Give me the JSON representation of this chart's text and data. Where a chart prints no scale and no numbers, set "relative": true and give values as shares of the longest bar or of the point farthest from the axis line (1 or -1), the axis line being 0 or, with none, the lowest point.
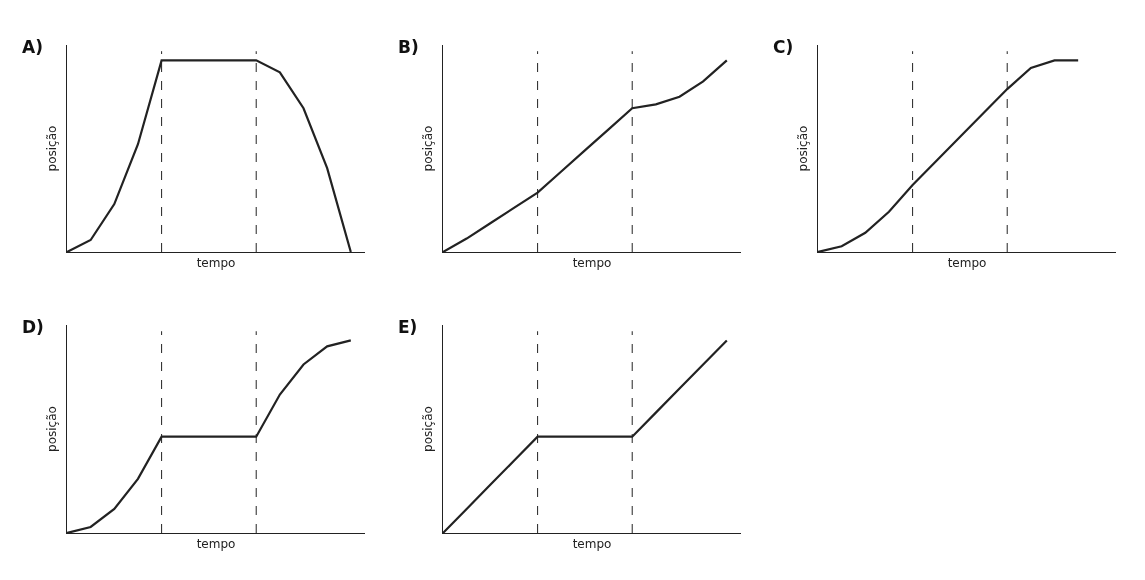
{
  "chart_data": [
    {
      "type": "line",
      "title": "A)",
      "xlabel": "tempo",
      "ylabel": "posição",
      "relative": true,
      "categories": [
        null,
        null,
        null,
        null,
        null,
        null,
        null,
        null,
        null,
        null,
        null,
        null,
        null
      ],
      "series": [
        {
          "color": "#222222",
          "values": [
            0,
            0.0625,
            0.25,
            0.5625,
            1,
            1,
            1,
            1,
            1,
            0.9375,
            0.75,
            0.4375,
            0
          ]
        }
      ]
    },
    {
      "type": "line",
      "title": "B)",
      "xlabel": "tempo",
      "ylabel": "posição",
      "relative": true,
      "categories": [
        null,
        null,
        null,
        null,
        null,
        null,
        null,
        null,
        null,
        null,
        null,
        null,
        null
      ],
      "series": [
        {
          "color": "#222222",
          "values": [
            0,
            0.07,
            0.15,
            0.23,
            0.31,
            0.42,
            0.53,
            0.64,
            0.75,
            0.77,
            0.81,
            0.89,
            1
          ]
        }
      ]
    },
    {
      "type": "line",
      "title": "C)",
      "xlabel": "tempo",
      "ylabel": "posição",
      "relative": true,
      "categories": [
        null,
        null,
        null,
        null,
        null,
        null,
        null,
        null,
        null,
        null,
        null,
        null,
        null
      ],
      "series": [
        {
          "color": "#222222",
          "values": [
            0,
            0.03,
            0.1,
            0.21,
            0.35,
            0.475,
            0.6,
            0.725,
            0.85,
            0.96,
            1,
            1,
            null
          ]
        }
      ]
    },
    {
      "type": "line",
      "title": "D)",
      "xlabel": "tempo",
      "ylabel": "posição",
      "relative": true,
      "categories": [
        null,
        null,
        null,
        null,
        null,
        null,
        null,
        null,
        null,
        null,
        null,
        null,
        null
      ],
      "series": [
        {
          "color": "#222222",
          "values": [
            0,
            0.03125,
            0.125,
            0.28125,
            0.5,
            0.5,
            0.5,
            0.5,
            0.5,
            0.719,
            0.875,
            0.969,
            1
          ]
        }
      ]
    },
    {
      "type": "line",
      "title": "E)",
      "xlabel": "tempo",
      "ylabel": "posição",
      "relative": true,
      "categories": [
        null,
        null,
        null,
        null,
        null,
        null,
        null,
        null,
        null,
        null,
        null,
        null,
        null
      ],
      "series": [
        {
          "color": "#222222",
          "values": [
            0,
            0.125,
            0.25,
            0.375,
            0.5,
            0.5,
            0.5,
            0.5,
            0.5,
            0.625,
            0.75,
            0.875,
            1
          ]
        }
      ]
    }
  ]
}
